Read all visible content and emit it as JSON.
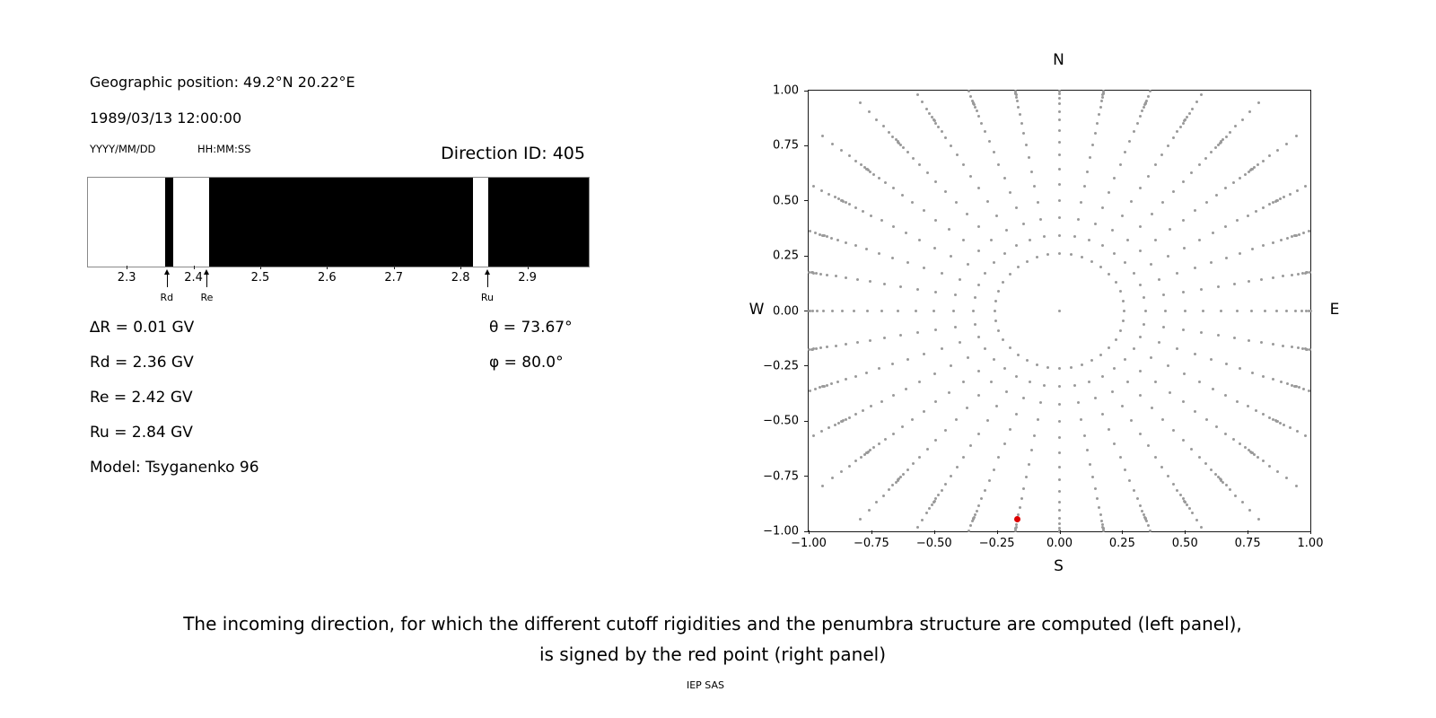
{
  "left_panel": {
    "geo_position": "Geographic position: 49.2°N 20.22°E",
    "datetime": "1989/03/13 12:00:00",
    "date_format_label": "YYYY/MM/DD",
    "time_format_label": "HH:MM:SS",
    "direction_id_label": "Direction ID: 405",
    "delta_r": "∆R = 0.01 GV",
    "rd": "Rd = 2.36 GV",
    "re": "Re = 2.42 GV",
    "ru": "Ru = 2.84 GV",
    "model": "Model: Tsyganenko 96",
    "theta": "θ = 73.67°",
    "phi": "φ = 80.0°"
  },
  "caption": {
    "line1": "The incoming direction, for which the different cutoff rigidities and the penumbra structure are computed (left panel),",
    "line2": "is signed by the red point (right panel)",
    "credit": "IEP SAS"
  },
  "chart_data": [
    {
      "id": "penumbra-spectrum",
      "type": "heatmap",
      "xlim": [
        2.242,
        2.992
      ],
      "xticks": [
        {
          "v": 2.3,
          "label": "2.3"
        },
        {
          "v": 2.4,
          "label": "2.4"
        },
        {
          "v": 2.5,
          "label": "2.5"
        },
        {
          "v": 2.6,
          "label": "2.6"
        },
        {
          "v": 2.7,
          "label": "2.7"
        },
        {
          "v": 2.8,
          "label": "2.8"
        },
        {
          "v": 2.9,
          "label": "2.9"
        }
      ],
      "black_bands": [
        [
          2.358,
          2.37
        ],
        [
          2.423,
          2.818
        ],
        [
          2.842,
          2.992
        ]
      ],
      "cutoff_markers": [
        {
          "label": "Rd",
          "v": 2.36
        },
        {
          "label": "Re",
          "v": 2.42
        },
        {
          "label": "Ru",
          "v": 2.84
        }
      ],
      "colors": {
        "band": "#000000",
        "background": "#ffffff"
      }
    },
    {
      "id": "direction-map",
      "type": "scatter",
      "xlim": [
        -1,
        1
      ],
      "ylim": [
        -1,
        1
      ],
      "xticks": [
        {
          "v": -1,
          "label": "−1.00"
        },
        {
          "v": -0.75,
          "label": "−0.75"
        },
        {
          "v": -0.5,
          "label": "−0.50"
        },
        {
          "v": -0.25,
          "label": "−0.25"
        },
        {
          "v": 0,
          "label": "0.00"
        },
        {
          "v": 0.25,
          "label": "0.25"
        },
        {
          "v": 0.5,
          "label": "0.50"
        },
        {
          "v": 0.75,
          "label": "0.75"
        },
        {
          "v": 1,
          "label": "1.00"
        }
      ],
      "yticks": [
        {
          "v": 1,
          "label": "1.00"
        },
        {
          "v": 0.75,
          "label": "0.75"
        },
        {
          "v": 0.5,
          "label": "0.50"
        },
        {
          "v": 0.25,
          "label": "0.25"
        },
        {
          "v": 0,
          "label": "0.00"
        },
        {
          "v": -0.25,
          "label": "−0.25"
        },
        {
          "v": -0.5,
          "label": "−0.50"
        },
        {
          "v": -0.75,
          "label": "−0.75"
        },
        {
          "v": -1,
          "label": "−1.00"
        }
      ],
      "compass": {
        "top": "N",
        "bottom": "S",
        "left": "W",
        "right": "E"
      },
      "dot_color": "#9a9a9a",
      "grid_spec": {
        "azimuth_deg": {
          "start": 0,
          "step": 10,
          "count": 36
        },
        "zenith_deg": {
          "start": 15,
          "step": 5,
          "end": 130
        },
        "center_dot": true
      },
      "red_point": {
        "x": -0.1666,
        "y": -0.9451,
        "color": "#dd0000"
      }
    }
  ]
}
